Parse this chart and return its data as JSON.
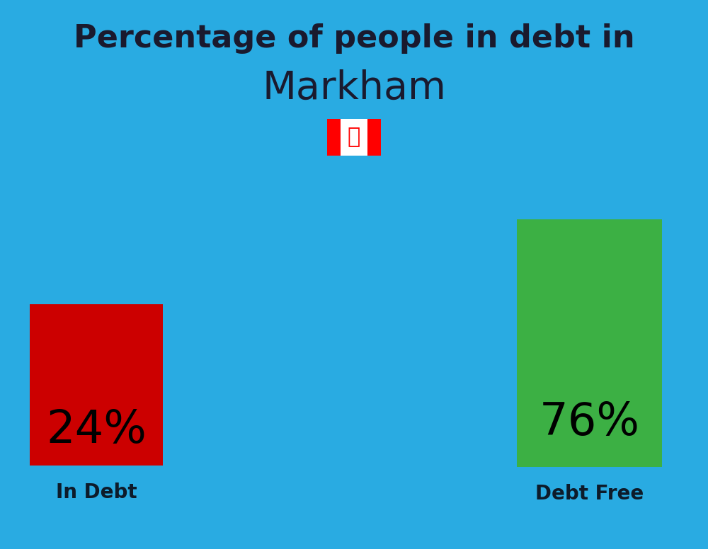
{
  "title_line1": "Percentage of people in debt in",
  "title_line2": "Markham",
  "background_color": "#29ABE2",
  "bar_left_color": "#CC0000",
  "bar_right_color": "#3CB044",
  "bar_left_value": "24%",
  "bar_right_value": "76%",
  "label_left": "In Debt",
  "label_right": "Debt Free",
  "title_fontsize": 32,
  "title_line2_fontsize": 40,
  "value_fontsize": 46,
  "label_fontsize": 20,
  "text_color": "#1a1a2e",
  "label_color": "#0d1b2a",
  "flag_red": "#FF0000",
  "flag_white": "#FFFFFF"
}
